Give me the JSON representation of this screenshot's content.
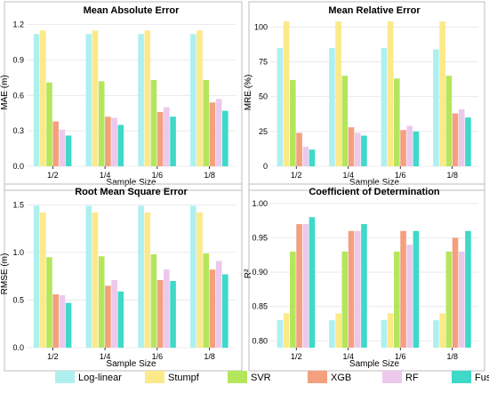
{
  "chart_data": [
    {
      "type": "bar",
      "title": "Mean Absolute Error",
      "xlabel": "Sample Size",
      "ylabel": "MAE (m)",
      "categories": [
        "1/2",
        "1/4",
        "1/6",
        "1/8"
      ],
      "ylim": [
        0,
        1.25
      ],
      "yticks": [
        0.0,
        0.3,
        0.6,
        0.9,
        1.2
      ],
      "ytick_labels": [
        "0.0",
        "0.3",
        "0.6",
        "0.9",
        "1.2"
      ],
      "series": [
        {
          "name": "Log-linear",
          "values": [
            1.12,
            1.12,
            1.12,
            1.12
          ]
        },
        {
          "name": "Stumpf",
          "values": [
            1.15,
            1.15,
            1.15,
            1.15
          ]
        },
        {
          "name": "SVR",
          "values": [
            0.71,
            0.72,
            0.73,
            0.73
          ]
        },
        {
          "name": "XGB",
          "values": [
            0.38,
            0.42,
            0.46,
            0.54
          ]
        },
        {
          "name": "RF",
          "values": [
            0.31,
            0.41,
            0.5,
            0.57
          ]
        },
        {
          "name": "Fusion",
          "values": [
            0.26,
            0.35,
            0.42,
            0.47
          ]
        }
      ]
    },
    {
      "type": "bar",
      "title": "Mean Relative Error",
      "xlabel": "Sample Size",
      "ylabel": "MRE (%)",
      "categories": [
        "1/2",
        "1/4",
        "1/6",
        "1/8"
      ],
      "ylim": [
        0,
        106
      ],
      "yticks": [
        0,
        25,
        50,
        75,
        100
      ],
      "ytick_labels": [
        "0",
        "25",
        "50",
        "75",
        "100"
      ],
      "series": [
        {
          "name": "Log-linear",
          "values": [
            85,
            85,
            85,
            84
          ]
        },
        {
          "name": "Stumpf",
          "values": [
            104,
            104,
            104,
            104
          ]
        },
        {
          "name": "SVR",
          "values": [
            62,
            65,
            63,
            65
          ]
        },
        {
          "name": "XGB",
          "values": [
            24,
            28,
            26,
            38
          ]
        },
        {
          "name": "RF",
          "values": [
            14,
            24,
            29,
            41
          ]
        },
        {
          "name": "Fusion",
          "values": [
            12,
            22,
            25,
            35
          ]
        }
      ]
    },
    {
      "type": "bar",
      "title": "Root Mean Square Error",
      "xlabel": "Sample Size",
      "ylabel": "RMSE (m)",
      "categories": [
        "1/2",
        "1/4",
        "1/6",
        "1/8"
      ],
      "ylim": [
        0,
        1.55
      ],
      "yticks": [
        0.0,
        0.5,
        1.0,
        1.5
      ],
      "ytick_labels": [
        "0.0",
        "0.5",
        "1.0",
        "1.5"
      ],
      "series": [
        {
          "name": "Log-linear",
          "values": [
            1.49,
            1.49,
            1.49,
            1.49
          ]
        },
        {
          "name": "Stumpf",
          "values": [
            1.42,
            1.42,
            1.42,
            1.42
          ]
        },
        {
          "name": "SVR",
          "values": [
            0.95,
            0.96,
            0.98,
            0.99
          ]
        },
        {
          "name": "XGB",
          "values": [
            0.56,
            0.65,
            0.71,
            0.82
          ]
        },
        {
          "name": "RF",
          "values": [
            0.55,
            0.71,
            0.82,
            0.91
          ]
        },
        {
          "name": "Fusion",
          "values": [
            0.47,
            0.59,
            0.7,
            0.77
          ]
        }
      ]
    },
    {
      "type": "bar",
      "title": "Coefficient of Determination",
      "xlabel": "Sample Size",
      "ylabel": "R²",
      "categories": [
        "1/2",
        "1/4",
        "1/6",
        "1/8"
      ],
      "ylim": [
        0.79,
        1.005
      ],
      "yticks": [
        0.8,
        0.85,
        0.9,
        0.95,
        1.0
      ],
      "ytick_labels": [
        "0.80",
        "0.85",
        "0.90",
        "0.95",
        "1.00"
      ],
      "series": [
        {
          "name": "Log-linear",
          "values": [
            0.83,
            0.83,
            0.83,
            0.83
          ]
        },
        {
          "name": "Stumpf",
          "values": [
            0.84,
            0.84,
            0.84,
            0.84
          ]
        },
        {
          "name": "SVR",
          "values": [
            0.93,
            0.93,
            0.93,
            0.93
          ]
        },
        {
          "name": "XGB",
          "values": [
            0.97,
            0.96,
            0.96,
            0.95
          ]
        },
        {
          "name": "RF",
          "values": [
            0.97,
            0.96,
            0.94,
            0.93
          ]
        },
        {
          "name": "Fusion",
          "values": [
            0.98,
            0.97,
            0.96,
            0.96
          ]
        }
      ]
    }
  ],
  "legend": {
    "placement": "bottom",
    "items": [
      {
        "name": "Log-linear",
        "color": "#aef0ef"
      },
      {
        "name": "Stumpf",
        "color": "#fbe98a"
      },
      {
        "name": "SVR",
        "color": "#b4e65c"
      },
      {
        "name": "XGB",
        "color": "#f4a07e"
      },
      {
        "name": "RF",
        "color": "#ecc9ec"
      },
      {
        "name": "Fusion",
        "color": "#3ed9c9"
      }
    ]
  },
  "style": {
    "panel_border": "#bdbdbd",
    "grid": "#e6e6e6",
    "grid_on": true
  }
}
